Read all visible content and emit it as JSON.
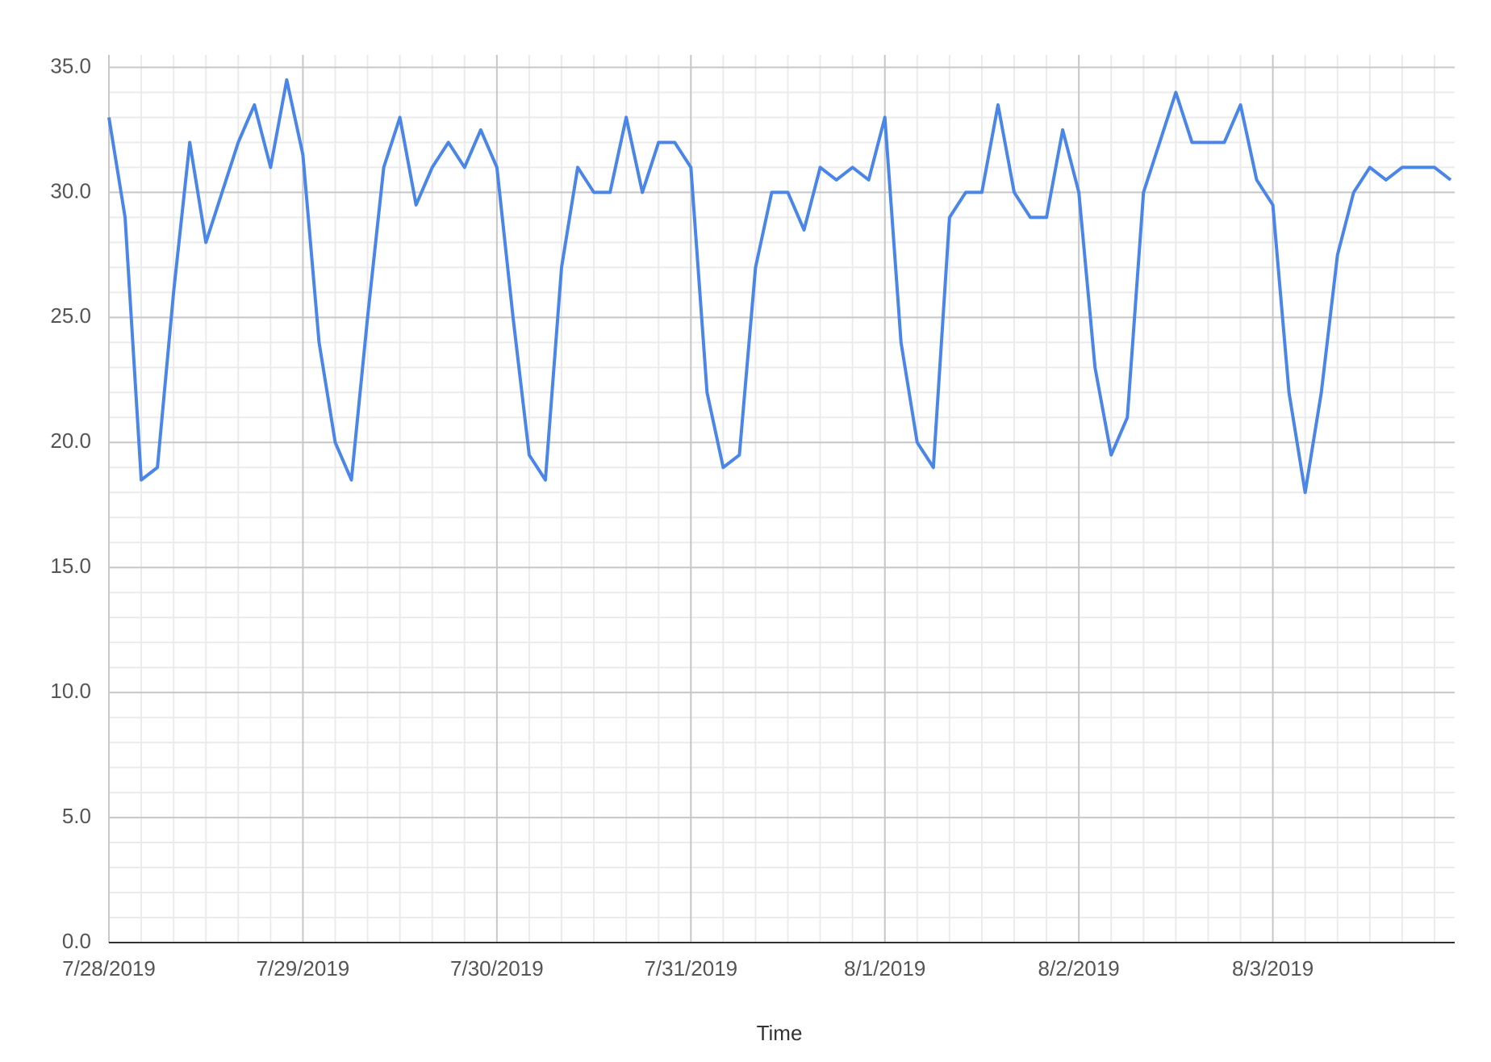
{
  "chart_data": {
    "type": "line",
    "x_label": "Time",
    "x": [
      0,
      2,
      4,
      6,
      8,
      10,
      12,
      14,
      16,
      18,
      20,
      22,
      24,
      26,
      28,
      30,
      32,
      34,
      36,
      38,
      40,
      42,
      44,
      46,
      48,
      50,
      52,
      54,
      56,
      58,
      60,
      62,
      64,
      66,
      68,
      70,
      72,
      74,
      76,
      78,
      80,
      82,
      84,
      86,
      88,
      90,
      92,
      94,
      96,
      98,
      100,
      102,
      104,
      106,
      108,
      110,
      112,
      114,
      116,
      118,
      120,
      122,
      124,
      126,
      128,
      130,
      132,
      134,
      136,
      138,
      140,
      142,
      144,
      146,
      148,
      150,
      152,
      154,
      156,
      158,
      160,
      162,
      164,
      166
    ],
    "series": [
      {
        "color": "#4a86e8",
        "values": [
          33,
          29,
          18.5,
          19,
          26,
          32,
          28,
          30,
          32,
          33.5,
          31,
          34.5,
          31.5,
          24,
          20,
          18.5,
          25,
          31,
          33,
          29.5,
          31,
          32,
          31,
          32.5,
          31,
          25,
          19.5,
          18.5,
          27,
          31,
          30,
          30,
          33,
          30,
          32,
          32,
          31,
          22,
          19,
          19.5,
          27,
          30,
          30,
          28.5,
          31,
          30.5,
          31,
          30.5,
          33,
          24,
          20,
          19,
          29,
          30,
          30,
          33.5,
          30,
          29,
          29,
          32.5,
          30,
          23,
          19.5,
          21,
          30,
          32,
          34,
          32,
          32,
          32,
          33.5,
          30.5,
          29.5,
          22,
          18,
          22,
          27.5,
          30,
          31,
          30.5,
          31,
          31,
          31,
          30.5
        ]
      }
    ],
    "xlim": [
      0,
      166.5
    ],
    "xticks": [
      {
        "value": 0,
        "label": "7/28/2019"
      },
      {
        "value": 24,
        "label": "7/29/2019"
      },
      {
        "value": 48,
        "label": "7/30/2019"
      },
      {
        "value": 72,
        "label": "7/31/2019"
      },
      {
        "value": 96,
        "label": "8/1/2019"
      },
      {
        "value": 120,
        "label": "8/2/2019"
      },
      {
        "value": 144,
        "label": "8/3/2019"
      }
    ],
    "ylim": [
      0,
      35.5
    ],
    "yticks": [
      {
        "value": 0,
        "label": "0.0"
      },
      {
        "value": 5,
        "label": "5.0"
      },
      {
        "value": 10,
        "label": "10.0"
      },
      {
        "value": 15,
        "label": "15.0"
      },
      {
        "value": 20,
        "label": "20.0"
      },
      {
        "value": 25,
        "label": "25.0"
      },
      {
        "value": 30,
        "label": "30.0"
      },
      {
        "value": 35,
        "label": "35.0"
      }
    ],
    "grid": true
  }
}
